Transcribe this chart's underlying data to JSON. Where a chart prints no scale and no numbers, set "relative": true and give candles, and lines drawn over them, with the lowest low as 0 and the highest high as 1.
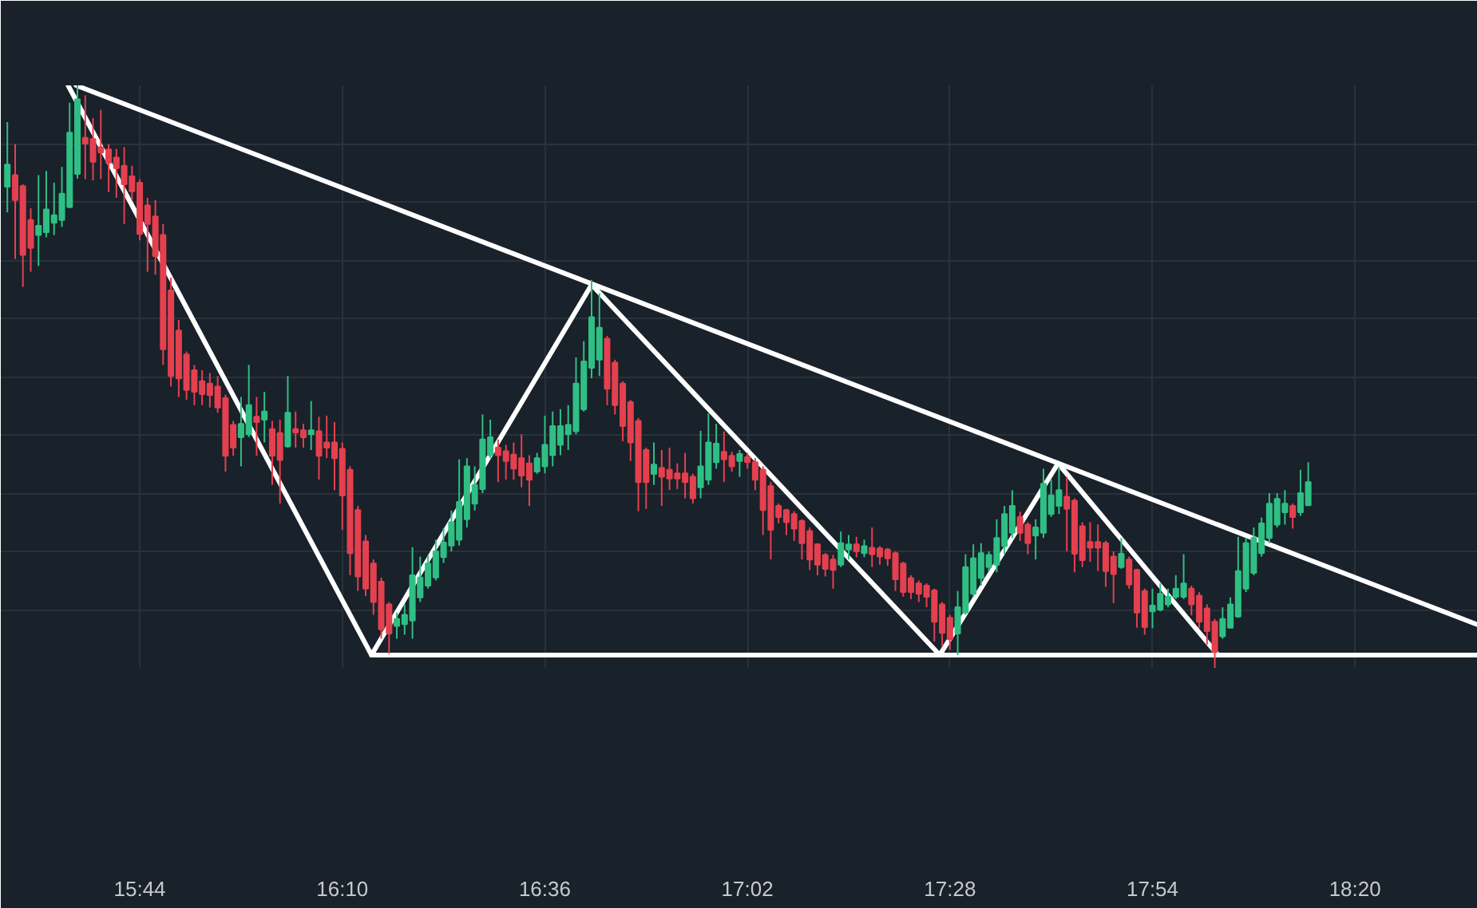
{
  "chart_data": {
    "type": "candlestick",
    "relative": true,
    "grid": true,
    "tick_labels": "x",
    "xlim": [
      15.436,
      18.596
    ],
    "xticks": [
      {
        "value": 15.7333,
        "label": "15:44"
      },
      {
        "value": 16.1667,
        "label": "16:10"
      },
      {
        "value": 16.6,
        "label": "16:36"
      },
      {
        "value": 17.0333,
        "label": "17:02"
      },
      {
        "value": 17.4667,
        "label": "17:28"
      },
      {
        "value": 17.9,
        "label": "17:54"
      },
      {
        "value": 18.3333,
        "label": "18:20"
      }
    ],
    "x": [
      15.45,
      15.4667,
      15.4833,
      15.5,
      15.5167,
      15.5333,
      15.55,
      15.5667,
      15.5833,
      15.6,
      15.6167,
      15.6333,
      15.65,
      15.6667,
      15.6833,
      15.7,
      15.7167,
      15.7333,
      15.75,
      15.7667,
      15.7833,
      15.8,
      15.8167,
      15.8333,
      15.85,
      15.8667,
      15.8833,
      15.9,
      15.9167,
      15.9333,
      15.95,
      15.9667,
      15.9833,
      16.0,
      16.0167,
      16.0333,
      16.05,
      16.0667,
      16.0833,
      16.1,
      16.1167,
      16.1333,
      16.15,
      16.1667,
      16.1833,
      16.2,
      16.2167,
      16.2333,
      16.25,
      16.2667,
      16.2833,
      16.3,
      16.3167,
      16.3333,
      16.35,
      16.3667,
      16.3833,
      16.4,
      16.4167,
      16.4333,
      16.45,
      16.4667,
      16.4833,
      16.5,
      16.5167,
      16.5333,
      16.55,
      16.5667,
      16.5833,
      16.6,
      16.6167,
      16.6333,
      16.65,
      16.6667,
      16.6833,
      16.7,
      16.7167,
      16.7333,
      16.75,
      16.7667,
      16.7833,
      16.8,
      16.8167,
      16.8333,
      16.85,
      16.8667,
      16.8833,
      16.9,
      16.9167,
      16.9333,
      16.95,
      16.9667,
      16.9833,
      17.0,
      17.0167,
      17.0333,
      17.05,
      17.0667,
      17.0833,
      17.1,
      17.1167,
      17.1333,
      17.15,
      17.1667,
      17.1833,
      17.2,
      17.2167,
      17.2333,
      17.25,
      17.2667,
      17.2833,
      17.3,
      17.3167,
      17.3333,
      17.35,
      17.3667,
      17.3833,
      17.4,
      17.4167,
      17.4333,
      17.45,
      17.4667,
      17.4833,
      17.5,
      17.5167,
      17.5333,
      17.55,
      17.5667,
      17.5833,
      17.6,
      17.6167,
      17.6333,
      17.65,
      17.6667,
      17.6833,
      17.7,
      17.7167,
      17.7333,
      17.75,
      17.7667,
      17.7833,
      17.8,
      17.8167,
      17.8333,
      17.85,
      17.8667,
      17.8833,
      17.9,
      17.9167,
      17.9333,
      17.95,
      17.9667,
      17.9833,
      18.0,
      18.0167,
      18.0333,
      18.05,
      18.0667,
      18.0833,
      18.1,
      18.1167,
      18.1333,
      18.15,
      18.1667,
      18.1833,
      18.2,
      18.2167,
      18.2333
    ],
    "ohlc": [
      [
        0.826,
        0.937,
        0.782,
        0.864
      ],
      [
        0.846,
        0.899,
        0.702,
        0.803
      ],
      [
        0.827,
        0.83,
        0.654,
        0.709
      ],
      [
        0.769,
        0.789,
        0.68,
        0.721
      ],
      [
        0.743,
        0.846,
        0.69,
        0.759
      ],
      [
        0.748,
        0.853,
        0.739,
        0.787
      ],
      [
        0.764,
        0.833,
        0.743,
        0.777
      ],
      [
        0.769,
        0.86,
        0.757,
        0.814
      ],
      [
        0.791,
        0.97,
        0.789,
        0.919
      ],
      [
        0.848,
        1.0,
        0.84,
        0.976
      ],
      [
        0.91,
        0.983,
        0.839,
        0.9
      ],
      [
        0.908,
        0.944,
        0.837,
        0.869
      ],
      [
        0.894,
        0.958,
        0.839,
        0.885
      ],
      [
        0.89,
        0.899,
        0.817,
        0.867
      ],
      [
        0.876,
        0.891,
        0.807,
        0.858
      ],
      [
        0.862,
        0.894,
        0.762,
        0.83
      ],
      [
        0.844,
        0.862,
        0.803,
        0.818
      ],
      [
        0.833,
        0.839,
        0.734,
        0.745
      ],
      [
        0.794,
        0.807,
        0.68,
        0.762
      ],
      [
        0.775,
        0.803,
        0.675,
        0.707
      ],
      [
        0.743,
        0.762,
        0.52,
        0.547
      ],
      [
        0.648,
        0.67,
        0.483,
        0.501
      ],
      [
        0.579,
        0.597,
        0.465,
        0.497
      ],
      [
        0.538,
        0.543,
        0.46,
        0.477
      ],
      [
        0.511,
        0.52,
        0.451,
        0.474
      ],
      [
        0.492,
        0.511,
        0.451,
        0.47
      ],
      [
        0.488,
        0.506,
        0.447,
        0.468
      ],
      [
        0.483,
        0.501,
        0.438,
        0.447
      ],
      [
        0.463,
        0.469,
        0.337,
        0.364
      ],
      [
        0.417,
        0.424,
        0.364,
        0.378
      ],
      [
        0.396,
        0.465,
        0.346,
        0.419
      ],
      [
        0.401,
        0.52,
        0.396,
        0.451
      ],
      [
        0.431,
        0.465,
        0.364,
        0.422
      ],
      [
        0.426,
        0.474,
        0.387,
        0.44
      ],
      [
        0.41,
        0.424,
        0.314,
        0.364
      ],
      [
        0.403,
        0.426,
        0.282,
        0.357
      ],
      [
        0.38,
        0.501,
        0.378,
        0.438
      ],
      [
        0.41,
        0.44,
        0.378,
        0.404
      ],
      [
        0.408,
        0.419,
        0.378,
        0.396
      ],
      [
        0.401,
        0.458,
        0.374,
        0.408
      ],
      [
        0.406,
        0.431,
        0.323,
        0.364
      ],
      [
        0.387,
        0.433,
        0.36,
        0.378
      ],
      [
        0.387,
        0.422,
        0.305,
        0.36
      ],
      [
        0.376,
        0.387,
        0.237,
        0.296
      ],
      [
        0.34,
        0.346,
        0.159,
        0.197
      ],
      [
        0.271,
        0.278,
        0.132,
        0.157
      ],
      [
        0.217,
        0.228,
        0.123,
        0.136
      ],
      [
        0.179,
        0.186,
        0.091,
        0.113
      ],
      [
        0.148,
        0.155,
        0.05,
        0.066
      ],
      [
        0.109,
        0.113,
        0.024,
        0.059
      ],
      [
        0.072,
        0.095,
        0.05,
        0.084
      ],
      [
        0.075,
        0.109,
        0.057,
        0.091
      ],
      [
        0.081,
        0.207,
        0.05,
        0.159
      ],
      [
        0.121,
        0.191,
        0.113,
        0.155
      ],
      [
        0.141,
        0.194,
        0.136,
        0.179
      ],
      [
        0.155,
        0.22,
        0.15,
        0.2
      ],
      [
        0.19,
        0.24,
        0.18,
        0.215
      ],
      [
        0.21,
        0.27,
        0.2,
        0.25
      ],
      [
        0.22,
        0.358,
        0.21,
        0.285
      ],
      [
        0.255,
        0.36,
        0.241,
        0.346
      ],
      [
        0.282,
        0.346,
        0.27,
        0.314
      ],
      [
        0.307,
        0.435,
        0.3,
        0.392
      ],
      [
        0.365,
        0.426,
        0.36,
        0.396
      ],
      [
        0.378,
        0.392,
        0.319,
        0.365
      ],
      [
        0.372,
        0.383,
        0.323,
        0.355
      ],
      [
        0.366,
        0.387,
        0.323,
        0.342
      ],
      [
        0.36,
        0.401,
        0.31,
        0.33
      ],
      [
        0.351,
        0.365,
        0.278,
        0.323
      ],
      [
        0.337,
        0.369,
        0.333,
        0.36
      ],
      [
        0.346,
        0.433,
        0.334,
        0.383
      ],
      [
        0.365,
        0.44,
        0.346,
        0.415
      ],
      [
        0.383,
        0.444,
        0.365,
        0.415
      ],
      [
        0.401,
        0.451,
        0.374,
        0.417
      ],
      [
        0.406,
        0.533,
        0.401,
        0.488
      ],
      [
        0.444,
        0.561,
        0.44,
        0.526
      ],
      [
        0.515,
        0.666,
        0.497,
        0.602
      ],
      [
        0.529,
        0.643,
        0.501,
        0.584
      ],
      [
        0.565,
        0.57,
        0.451,
        0.479
      ],
      [
        0.524,
        0.529,
        0.435,
        0.451
      ],
      [
        0.488,
        0.492,
        0.389,
        0.415
      ],
      [
        0.456,
        0.46,
        0.355,
        0.387
      ],
      [
        0.424,
        0.429,
        0.269,
        0.319
      ],
      [
        0.374,
        0.378,
        0.273,
        0.319
      ],
      [
        0.333,
        0.387,
        0.314,
        0.349
      ],
      [
        0.343,
        0.374,
        0.278,
        0.328
      ],
      [
        0.34,
        0.378,
        0.305,
        0.325
      ],
      [
        0.334,
        0.351,
        0.307,
        0.325
      ],
      [
        0.334,
        0.369,
        0.291,
        0.319
      ],
      [
        0.328,
        0.333,
        0.282,
        0.291
      ],
      [
        0.31,
        0.407,
        0.291,
        0.346
      ],
      [
        0.323,
        0.437,
        0.314,
        0.387
      ],
      [
        0.353,
        0.419,
        0.342,
        0.385
      ],
      [
        0.371,
        0.406,
        0.319,
        0.358
      ],
      [
        0.364,
        0.371,
        0.337,
        0.346
      ],
      [
        0.355,
        0.374,
        0.328,
        0.367
      ],
      [
        0.362,
        0.369,
        0.342,
        0.353
      ],
      [
        0.353,
        0.36,
        0.305,
        0.323
      ],
      [
        0.34,
        0.346,
        0.228,
        0.271
      ],
      [
        0.312,
        0.319,
        0.186,
        0.237
      ],
      [
        0.278,
        0.282,
        0.248,
        0.259
      ],
      [
        0.271,
        0.273,
        0.228,
        0.25
      ],
      [
        0.264,
        0.269,
        0.218,
        0.239
      ],
      [
        0.252,
        0.255,
        0.186,
        0.214
      ],
      [
        0.235,
        0.241,
        0.168,
        0.186
      ],
      [
        0.212,
        0.214,
        0.159,
        0.177
      ],
      [
        0.194,
        0.197,
        0.157,
        0.17
      ],
      [
        0.186,
        0.194,
        0.136,
        0.168
      ],
      [
        0.177,
        0.234,
        0.173,
        0.214
      ],
      [
        0.203,
        0.228,
        0.186,
        0.212
      ],
      [
        0.212,
        0.225,
        0.19,
        0.2
      ],
      [
        0.197,
        0.22,
        0.19,
        0.209
      ],
      [
        0.206,
        0.241,
        0.173,
        0.195
      ],
      [
        0.205,
        0.209,
        0.177,
        0.191
      ],
      [
        0.203,
        0.206,
        0.175,
        0.188
      ],
      [
        0.197,
        0.2,
        0.132,
        0.152
      ],
      [
        0.179,
        0.182,
        0.122,
        0.13
      ],
      [
        0.154,
        0.159,
        0.118,
        0.13
      ],
      [
        0.145,
        0.15,
        0.113,
        0.127
      ],
      [
        0.141,
        0.145,
        0.104,
        0.122
      ],
      [
        0.133,
        0.136,
        0.045,
        0.079
      ],
      [
        0.109,
        0.113,
        0.036,
        0.06
      ],
      [
        0.086,
        0.091,
        0.031,
        0.049
      ],
      [
        0.059,
        0.132,
        0.022,
        0.104
      ],
      [
        0.095,
        0.195,
        0.091,
        0.173
      ],
      [
        0.127,
        0.212,
        0.122,
        0.188
      ],
      [
        0.154,
        0.214,
        0.141,
        0.197
      ],
      [
        0.173,
        0.2,
        0.166,
        0.194
      ],
      [
        0.177,
        0.255,
        0.164,
        0.223
      ],
      [
        0.209,
        0.278,
        0.195,
        0.264
      ],
      [
        0.232,
        0.305,
        0.223,
        0.278
      ],
      [
        0.259,
        0.268,
        0.218,
        0.232
      ],
      [
        0.246,
        0.25,
        0.195,
        0.214
      ],
      [
        0.227,
        0.255,
        0.186,
        0.241
      ],
      [
        0.232,
        0.342,
        0.223,
        0.316
      ],
      [
        0.264,
        0.323,
        0.259,
        0.296
      ],
      [
        0.278,
        0.345,
        0.264,
        0.305
      ],
      [
        0.294,
        0.328,
        0.2,
        0.273
      ],
      [
        0.287,
        0.291,
        0.164,
        0.196
      ],
      [
        0.243,
        0.25,
        0.173,
        0.185
      ],
      [
        0.216,
        0.25,
        0.182,
        0.206
      ],
      [
        0.216,
        0.246,
        0.166,
        0.206
      ],
      [
        0.214,
        0.218,
        0.139,
        0.166
      ],
      [
        0.191,
        0.2,
        0.111,
        0.161
      ],
      [
        0.173,
        0.223,
        0.17,
        0.196
      ],
      [
        0.186,
        0.191,
        0.136,
        0.143
      ],
      [
        0.168,
        0.17,
        0.069,
        0.095
      ],
      [
        0.132,
        0.136,
        0.057,
        0.07
      ],
      [
        0.097,
        0.136,
        0.068,
        0.107
      ],
      [
        0.1,
        0.145,
        0.097,
        0.127
      ],
      [
        0.109,
        0.136,
        0.104,
        0.122
      ],
      [
        0.122,
        0.159,
        0.118,
        0.136
      ],
      [
        0.122,
        0.195,
        0.118,
        0.145
      ],
      [
        0.136,
        0.141,
        0.09,
        0.109
      ],
      [
        0.124,
        0.13,
        0.068,
        0.079
      ],
      [
        0.102,
        0.109,
        0.04,
        0.063
      ],
      [
        0.079,
        0.084,
        0.0,
        0.027
      ],
      [
        0.054,
        0.104,
        0.05,
        0.084
      ],
      [
        0.069,
        0.121,
        0.068,
        0.109
      ],
      [
        0.088,
        0.225,
        0.086,
        0.166
      ],
      [
        0.136,
        0.223,
        0.13,
        0.214
      ],
      [
        0.163,
        0.241,
        0.159,
        0.223
      ],
      [
        0.197,
        0.258,
        0.191,
        0.248
      ],
      [
        0.223,
        0.3,
        0.214,
        0.282
      ],
      [
        0.246,
        0.3,
        0.241,
        0.29
      ],
      [
        0.267,
        0.305,
        0.246,
        0.282
      ],
      [
        0.278,
        0.282,
        0.239,
        0.259
      ],
      [
        0.267,
        0.34,
        0.261,
        0.3
      ],
      [
        0.279,
        0.353,
        0.278,
        0.319
      ]
    ],
    "colors": [
      "#2fbf84",
      "#e4404f",
      "#e4404f",
      "#e4404f",
      "#2fbf84",
      "#2fbf84",
      "#2fbf84",
      "#2fbf84",
      "#2fbf84",
      "#2fbf84",
      "#e4404f",
      "#e4404f",
      "#e4404f",
      "#e4404f",
      "#e4404f",
      "#e4404f",
      "#e4404f",
      "#e4404f",
      "#e4404f",
      "#e4404f",
      "#e4404f",
      "#e4404f",
      "#e4404f",
      "#e4404f",
      "#e4404f",
      "#e4404f",
      "#e4404f",
      "#e4404f",
      "#e4404f",
      "#e4404f",
      "#2fbf84",
      "#2fbf84",
      "#e4404f",
      "#2fbf84",
      "#e4404f",
      "#e4404f",
      "#2fbf84",
      "#e4404f",
      "#e4404f",
      "#2fbf84",
      "#e4404f",
      "#e4404f",
      "#e4404f",
      "#e4404f",
      "#e4404f",
      "#e4404f",
      "#e4404f",
      "#e4404f",
      "#e4404f",
      "#e4404f",
      "#2fbf84",
      "#2fbf84",
      "#2fbf84",
      "#2fbf84",
      "#2fbf84",
      "#2fbf84",
      "#2fbf84",
      "#2fbf84",
      "#2fbf84",
      "#2fbf84",
      "#2fbf84",
      "#2fbf84",
      "#2fbf84",
      "#e4404f",
      "#e4404f",
      "#e4404f",
      "#e4404f",
      "#e4404f",
      "#2fbf84",
      "#2fbf84",
      "#2fbf84",
      "#2fbf84",
      "#2fbf84",
      "#2fbf84",
      "#2fbf84",
      "#2fbf84",
      "#2fbf84",
      "#e4404f",
      "#e4404f",
      "#e4404f",
      "#e4404f",
      "#e4404f",
      "#e4404f",
      "#2fbf84",
      "#e4404f",
      "#e4404f",
      "#e4404f",
      "#e4404f",
      "#e4404f",
      "#2fbf84",
      "#2fbf84",
      "#2fbf84",
      "#e4404f",
      "#e4404f",
      "#2fbf84",
      "#e4404f",
      "#e4404f",
      "#e4404f",
      "#e4404f",
      "#e4404f",
      "#e4404f",
      "#e4404f",
      "#e4404f",
      "#e4404f",
      "#e4404f",
      "#e4404f",
      "#e4404f",
      "#2fbf84",
      "#2fbf84",
      "#e4404f",
      "#2fbf84",
      "#e4404f",
      "#e4404f",
      "#e4404f",
      "#e4404f",
      "#e4404f",
      "#e4404f",
      "#e4404f",
      "#e4404f",
      "#e4404f",
      "#e4404f",
      "#e4404f",
      "#2fbf84",
      "#2fbf84",
      "#2fbf84",
      "#2fbf84",
      "#2fbf84",
      "#2fbf84",
      "#2fbf84",
      "#2fbf84",
      "#e4404f",
      "#e4404f",
      "#2fbf84",
      "#2fbf84",
      "#2fbf84",
      "#2fbf84",
      "#e4404f",
      "#e4404f",
      "#e4404f",
      "#e4404f",
      "#e4404f",
      "#e4404f",
      "#e4404f",
      "#2fbf84",
      "#e4404f",
      "#e4404f",
      "#e4404f",
      "#2fbf84",
      "#2fbf84",
      "#2fbf84",
      "#2fbf84",
      "#2fbf84",
      "#e4404f",
      "#e4404f",
      "#e4404f",
      "#e4404f",
      "#2fbf84",
      "#2fbf84",
      "#2fbf84",
      "#2fbf84",
      "#2fbf84",
      "#2fbf84",
      "#2fbf84",
      "#2fbf84",
      "#2fbf84",
      "#e4404f",
      "#2fbf84",
      "#2fbf84"
    ],
    "series": [
      {
        "type": "line",
        "color": "#ffffff",
        "x": [
          15.597,
          18.596
        ],
        "values": [
          1.0,
          0.074
        ]
      },
      {
        "type": "line",
        "color": "#ffffff",
        "x": [
          15.58,
          16.229,
          16.7,
          17.445,
          17.698,
          18.04
        ],
        "values": [
          1.0,
          0.022,
          0.658,
          0.022,
          0.351,
          0.022
        ]
      },
      {
        "type": "line",
        "color": "#ffffff",
        "x": [
          16.229,
          18.596
        ],
        "values": [
          0.022,
          0.022
        ]
      }
    ]
  }
}
